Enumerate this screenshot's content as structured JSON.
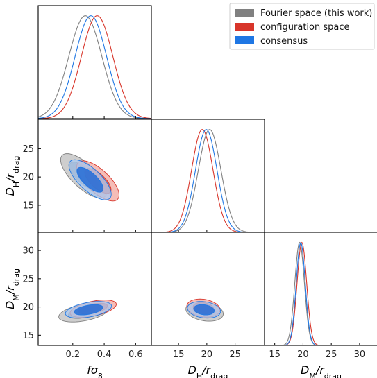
{
  "chart_data": {
    "type": "corner",
    "parameters": [
      {
        "key": "fs8",
        "label_main": "fσ",
        "label_sub": "8",
        "range": [
          -0.02,
          0.7
        ],
        "ticks": [
          "0.2",
          "0.4",
          "0.6"
        ],
        "tick_values": [
          0.2,
          0.4,
          0.6
        ]
      },
      {
        "key": "DH",
        "label_main": "D",
        "label_sub": "H",
        "label_tail": "/r",
        "label_tail_sub": "drag",
        "range": [
          10.2,
          30.2
        ],
        "ticks": [
          "15",
          "20",
          "25"
        ],
        "tick_values": [
          15,
          20,
          25
        ]
      },
      {
        "key": "DM",
        "label_main": "D",
        "label_sub": "M",
        "label_tail": "/r",
        "label_tail_sub": "drag",
        "range": [
          13.2,
          33.2
        ],
        "ticks": [
          "15",
          "20",
          "25",
          "30"
        ],
        "tick_values": [
          15,
          20,
          25,
          30
        ]
      }
    ],
    "y_ticks": {
      "DH": [
        "15",
        "20",
        "25"
      ],
      "DM": [
        "15",
        "20",
        "25",
        "30"
      ]
    },
    "legend": {
      "placement": "top-right",
      "entries": [
        {
          "label": "Fourier space (this work)",
          "color": "#808080"
        },
        {
          "label": "configuration space",
          "color": "#d8352a"
        },
        {
          "label": "consensus",
          "color": "#1f77e4"
        }
      ]
    },
    "series": [
      {
        "name": "Fourier space (this work)",
        "color": "#808080",
        "fill_outer": "#bdbdbd",
        "fill_inner": "#8e8e8e",
        "marginals": {
          "fs8": {
            "mean": 0.28,
            "sd": 0.105
          },
          "DH": {
            "mean": 20.5,
            "sd": 2.0
          },
          "DM": {
            "mean": 19.4,
            "sd": 0.85
          }
        },
        "contours": {
          "DH_vs_fs8": {
            "center": [
              0.27,
              20.2
            ],
            "sx": 0.12,
            "sy": 3.2,
            "rho": -0.72
          },
          "DM_vs_fs8": {
            "center": [
              0.27,
              19.0
            ],
            "sx": 0.13,
            "sy": 1.35,
            "rho": 0.45
          },
          "DM_vs_DH": {
            "center": [
              19.6,
              19.2
            ],
            "sx": 2.7,
            "sy": 1.4,
            "rho": -0.25
          }
        }
      },
      {
        "name": "configuration space",
        "color": "#d8352a",
        "fill_outer": "#f2a79f",
        "fill_inner": "#e35a4c",
        "marginals": {
          "fs8": {
            "mean": 0.355,
            "sd": 0.1
          },
          "DH": {
            "mean": 19.2,
            "sd": 1.9
          },
          "DM": {
            "mean": 19.8,
            "sd": 0.85
          }
        },
        "contours": {
          "DH_vs_fs8": {
            "center": [
              0.36,
              19.3
            ],
            "sx": 0.11,
            "sy": 2.9,
            "rho": -0.7
          },
          "DM_vs_fs8": {
            "center": [
              0.33,
              19.7
            ],
            "sx": 0.12,
            "sy": 1.25,
            "rho": 0.5
          },
          "DM_vs_DH": {
            "center": [
              19.4,
              19.8
            ],
            "sx": 2.4,
            "sy": 1.3,
            "rho": -0.2
          }
        }
      },
      {
        "name": "consensus",
        "color": "#1f77e4",
        "fill_outer": "#a9c9f1",
        "fill_inner": "#1a67d6",
        "marginals": {
          "fs8": {
            "mean": 0.315,
            "sd": 0.1
          },
          "DH": {
            "mean": 19.9,
            "sd": 1.9
          },
          "DM": {
            "mean": 19.6,
            "sd": 0.8
          }
        },
        "contours": {
          "DH_vs_fs8": {
            "center": [
              0.31,
              19.5
            ],
            "sx": 0.11,
            "sy": 2.9,
            "rho": -0.72
          },
          "DM_vs_fs8": {
            "center": [
              0.3,
              19.5
            ],
            "sx": 0.12,
            "sy": 1.2,
            "rho": 0.45
          },
          "DM_vs_DH": {
            "center": [
              19.5,
              19.5
            ],
            "sx": 2.4,
            "sy": 1.2,
            "rho": -0.2
          }
        }
      }
    ],
    "grid": false
  }
}
